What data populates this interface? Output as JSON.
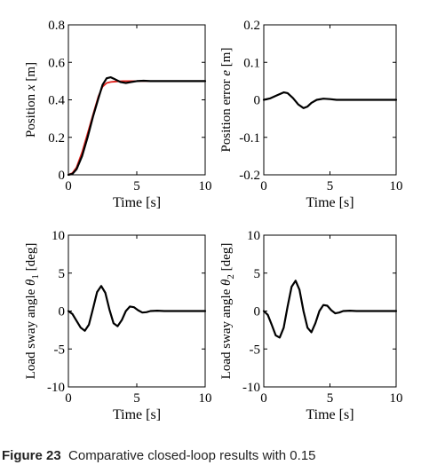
{
  "figure": {
    "caption_label": "Figure 23",
    "caption_text": "Comparative closed-loop results with 0.15"
  },
  "chart_data": [
    {
      "type": "line",
      "ylabel_prefix": "Position ",
      "ylabel_symbol": "x",
      "ylabel_sub": "",
      "ylabel_suffix": " [m]",
      "xlabel": "Time [s]",
      "xlim": [
        0,
        10
      ],
      "ylim": [
        0,
        0.8
      ],
      "xticks": [
        "0",
        "5",
        "10"
      ],
      "yticks": [
        "0",
        "0.2",
        "0.4",
        "0.6",
        "0.8"
      ],
      "grid": false,
      "series": [
        {
          "color": "#e0201a",
          "x": [
            0,
            0.3,
            0.6,
            1,
            1.4,
            1.8,
            2.2,
            2.5,
            2.8,
            3.1,
            3.5,
            4,
            5,
            6,
            8,
            10
          ],
          "y": [
            0,
            0.01,
            0.04,
            0.12,
            0.22,
            0.32,
            0.42,
            0.47,
            0.49,
            0.495,
            0.498,
            0.5,
            0.5,
            0.5,
            0.5,
            0.5
          ]
        },
        {
          "color": "#000000",
          "x": [
            0,
            0.3,
            0.6,
            1,
            1.4,
            1.8,
            2.2,
            2.5,
            2.8,
            3.1,
            3.4,
            3.8,
            4.2,
            4.6,
            5,
            5.5,
            6,
            7,
            8,
            10
          ],
          "y": [
            0,
            0.005,
            0.03,
            0.1,
            0.2,
            0.31,
            0.41,
            0.48,
            0.515,
            0.52,
            0.51,
            0.495,
            0.49,
            0.495,
            0.5,
            0.502,
            0.5,
            0.5,
            0.5,
            0.5
          ]
        }
      ]
    },
    {
      "type": "line",
      "ylabel_prefix": "Position error ",
      "ylabel_symbol": "e",
      "ylabel_sub": "",
      "ylabel_suffix": " [m]",
      "xlabel": "Time [s]",
      "xlim": [
        0,
        10
      ],
      "ylim": [
        -0.2,
        0.2
      ],
      "xticks": [
        "0",
        "5",
        "10"
      ],
      "yticks": [
        "-0.2",
        "-0.1",
        "0",
        "0.1",
        "0.2"
      ],
      "grid": false,
      "series": [
        {
          "color": "#000000",
          "x": [
            0,
            0.5,
            1,
            1.5,
            1.8,
            2.2,
            2.6,
            3,
            3.3,
            3.6,
            4,
            4.5,
            5,
            5.5,
            6,
            7,
            8,
            10
          ],
          "y": [
            0,
            0.004,
            0.012,
            0.02,
            0.018,
            0.005,
            -0.012,
            -0.022,
            -0.018,
            -0.008,
            0,
            0.003,
            0.002,
            0,
            0,
            0,
            0,
            0
          ]
        }
      ]
    },
    {
      "type": "line",
      "ylabel_prefix": "Load sway angle ",
      "ylabel_symbol": "θ",
      "ylabel_sub": "1",
      "ylabel_suffix": " [deg]",
      "xlabel": "Time [s]",
      "xlim": [
        0,
        10
      ],
      "ylim": [
        -10,
        10
      ],
      "xticks": [
        "0",
        "5",
        "10"
      ],
      "yticks": [
        "-10",
        "-5",
        "0",
        "5",
        "10"
      ],
      "grid": false,
      "series": [
        {
          "color": "#000000",
          "x": [
            0,
            0.3,
            0.6,
            0.9,
            1.2,
            1.5,
            1.8,
            2.1,
            2.4,
            2.7,
            3,
            3.3,
            3.6,
            3.9,
            4.2,
            4.5,
            4.8,
            5.1,
            5.4,
            5.7,
            6,
            6.5,
            7,
            8,
            10
          ],
          "y": [
            0,
            -0.4,
            -1.3,
            -2.2,
            -2.6,
            -1.8,
            0.3,
            2.5,
            3.3,
            2.4,
            0.2,
            -1.6,
            -2,
            -1.2,
            0,
            0.6,
            0.5,
            0.1,
            -0.2,
            -0.15,
            0,
            0.05,
            0,
            0,
            0
          ]
        }
      ]
    },
    {
      "type": "line",
      "ylabel_prefix": "Load sway angle ",
      "ylabel_symbol": "θ",
      "ylabel_sub": "2",
      "ylabel_suffix": " [deg]",
      "xlabel": "Time [s]",
      "xlim": [
        0,
        10
      ],
      "ylim": [
        -10,
        10
      ],
      "xticks": [
        "0",
        "5",
        "10"
      ],
      "yticks": [
        "-10",
        "-5",
        "0",
        "5",
        "10"
      ],
      "grid": false,
      "series": [
        {
          "color": "#000000",
          "x": [
            0,
            0.3,
            0.6,
            0.9,
            1.2,
            1.5,
            1.8,
            2.1,
            2.4,
            2.7,
            3,
            3.3,
            3.6,
            3.9,
            4.2,
            4.5,
            4.8,
            5.1,
            5.4,
            5.7,
            6,
            6.5,
            7,
            8,
            10
          ],
          "y": [
            0,
            -0.5,
            -1.8,
            -3.2,
            -3.5,
            -2.2,
            0.6,
            3.2,
            4,
            2.8,
            0,
            -2.2,
            -2.8,
            -1.6,
            0,
            0.8,
            0.7,
            0.1,
            -0.3,
            -0.2,
            0,
            0.05,
            0,
            0,
            0
          ]
        }
      ]
    }
  ]
}
